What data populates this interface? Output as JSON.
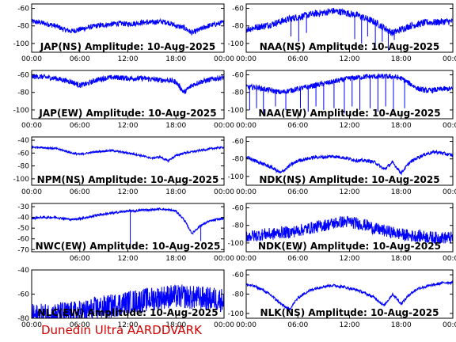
{
  "credit": "Dunedin Ultra AARDDVARK",
  "colors": {
    "trace": "#0000ff",
    "axis": "#000000",
    "credit": "#d00000"
  },
  "chart_data": [
    {
      "type": "line",
      "title": "JAP(NS) Amplitude: 10-Aug-2025",
      "xticks": [
        "00:00",
        "06:00",
        "12:00",
        "18:00",
        "00:00"
      ],
      "yticks": [
        -60,
        -80,
        -100
      ],
      "ylim": [
        -110,
        -55
      ],
      "noise": 3,
      "series": [
        {
          "x": [
            0,
            1,
            2,
            3,
            4,
            5,
            6,
            7,
            8,
            9,
            10,
            11,
            12,
            13,
            14,
            15,
            16,
            17,
            18,
            19,
            20,
            21,
            22,
            23,
            24
          ],
          "y": [
            -75,
            -76,
            -78,
            -80,
            -84,
            -86,
            -84,
            -82,
            -80,
            -79,
            -78,
            -77,
            -78,
            -77,
            -76,
            -76,
            -75,
            -76,
            -80,
            -82,
            -88,
            -84,
            -80,
            -78,
            -76
          ]
        }
      ]
    },
    {
      "type": "line",
      "title": "NAA(NS) Amplitude: 10-Aug-2025",
      "xticks": [
        "00:00",
        "06:00",
        "12:00",
        "18:00",
        "00:00"
      ],
      "yticks": [
        -60,
        -80,
        -100
      ],
      "ylim": [
        -110,
        -55
      ],
      "noise": 4,
      "series": [
        {
          "x": [
            0,
            1,
            2,
            3,
            4,
            5,
            6,
            7,
            8,
            9,
            10,
            11,
            12,
            13,
            14,
            15,
            16,
            17,
            18,
            19,
            20,
            21,
            22,
            23,
            24
          ],
          "y": [
            -84,
            -82,
            -80,
            -78,
            -75,
            -72,
            -70,
            -68,
            -66,
            -65,
            -63,
            -64,
            -66,
            -68,
            -72,
            -76,
            -82,
            -88,
            -84,
            -80,
            -78,
            -76,
            -76,
            -75,
            -75
          ]
        }
      ],
      "spikes": [
        [
          5.2,
          -92
        ],
        [
          6.1,
          -98
        ],
        [
          7.0,
          -88
        ],
        [
          12.6,
          -95
        ],
        [
          13.4,
          -100
        ],
        [
          14.1,
          -92
        ],
        [
          15.0,
          -105
        ],
        [
          15.8,
          -98
        ],
        [
          16.5,
          -108
        ],
        [
          17.2,
          -96
        ]
      ]
    },
    {
      "type": "line",
      "title": "JAP(EW) Amplitude: 10-Aug-2025",
      "xticks": [
        "00:00",
        "06:00",
        "12:00",
        "18:00",
        "00:00"
      ],
      "yticks": [
        -60,
        -80,
        -100
      ],
      "ylim": [
        -110,
        -55
      ],
      "noise": 3,
      "series": [
        {
          "x": [
            0,
            1,
            2,
            3,
            4,
            5,
            6,
            7,
            8,
            9,
            10,
            11,
            12,
            13,
            14,
            15,
            16,
            17,
            18,
            19,
            20,
            21,
            22,
            23,
            24
          ],
          "y": [
            -62,
            -62,
            -63,
            -64,
            -66,
            -68,
            -72,
            -70,
            -66,
            -64,
            -63,
            -63,
            -64,
            -64,
            -64,
            -65,
            -66,
            -66,
            -68,
            -80,
            -72,
            -68,
            -66,
            -64,
            -63
          ]
        }
      ]
    },
    {
      "type": "line",
      "title": "NAA(EW) Amplitude: 10-Aug-2025",
      "xticks": [
        "00:00",
        "06:00",
        "12:00",
        "18:00",
        "00:00"
      ],
      "yticks": [
        -60,
        -80,
        -100
      ],
      "ylim": [
        -110,
        -55
      ],
      "noise": 3,
      "series": [
        {
          "x": [
            0,
            1,
            2,
            3,
            4,
            5,
            6,
            7,
            8,
            9,
            10,
            11,
            12,
            13,
            14,
            15,
            16,
            17,
            18,
            19,
            20,
            21,
            22,
            23,
            24
          ],
          "y": [
            -74,
            -74,
            -76,
            -78,
            -80,
            -78,
            -76,
            -74,
            -72,
            -70,
            -68,
            -66,
            -64,
            -63,
            -62,
            -62,
            -62,
            -62,
            -64,
            -70,
            -76,
            -78,
            -77,
            -76,
            -76
          ]
        }
      ],
      "spikes": [
        [
          0.4,
          -100
        ],
        [
          1.2,
          -98
        ],
        [
          2.0,
          -104
        ],
        [
          3.4,
          -96
        ],
        [
          4.6,
          -100
        ],
        [
          6.3,
          -98
        ],
        [
          7.2,
          -102
        ],
        [
          8.1,
          -96
        ],
        [
          9.0,
          -100
        ],
        [
          10.2,
          -98
        ],
        [
          11.4,
          -104
        ],
        [
          12.3,
          -96
        ],
        [
          13.2,
          -100
        ],
        [
          14.4,
          -98
        ],
        [
          15.3,
          -102
        ],
        [
          16.2,
          -96
        ],
        [
          17.1,
          -100
        ],
        [
          18.4,
          -98
        ]
      ]
    },
    {
      "type": "line",
      "title": "NPM(NS) Amplitude: 10-Aug-2025",
      "xticks": [
        "00:00",
        "06:00",
        "12:00",
        "18:00",
        "00:00"
      ],
      "yticks": [
        -40,
        -60,
        -80,
        -100
      ],
      "ylim": [
        -110,
        -35
      ],
      "noise": 1.5,
      "series": [
        {
          "x": [
            0,
            1,
            2,
            3,
            4,
            5,
            6,
            7,
            8,
            9,
            10,
            11,
            12,
            13,
            14,
            15,
            16,
            17,
            18,
            19,
            20,
            21,
            22,
            23,
            24
          ],
          "y": [
            -51,
            -51,
            -52,
            -53,
            -56,
            -60,
            -62,
            -60,
            -58,
            -57,
            -56,
            -58,
            -60,
            -62,
            -65,
            -68,
            -66,
            -72,
            -64,
            -60,
            -58,
            -56,
            -54,
            -52,
            -51
          ]
        }
      ]
    },
    {
      "type": "line",
      "title": "NDK(NS) Amplitude: 10-Aug-2025",
      "xticks": [
        "00:00",
        "06:00",
        "12:00",
        "18:00",
        "00:00"
      ],
      "yticks": [
        -60,
        -80,
        -100
      ],
      "ylim": [
        -110,
        -55
      ],
      "noise": 2,
      "series": [
        {
          "x": [
            0,
            1,
            2,
            3,
            4,
            5,
            6,
            7,
            8,
            9,
            10,
            11,
            12,
            13,
            14,
            15,
            16,
            17,
            18,
            19,
            20,
            21,
            22,
            23,
            24
          ],
          "y": [
            -78,
            -82,
            -86,
            -90,
            -96,
            -88,
            -82,
            -80,
            -78,
            -78,
            -77,
            -78,
            -80,
            -82,
            -82,
            -84,
            -92,
            -84,
            -96,
            -84,
            -78,
            -74,
            -72,
            -74,
            -76
          ]
        }
      ]
    },
    {
      "type": "line",
      "title": "NWC(EW) Amplitude: 10-Aug-2025",
      "xticks": [
        "06:00",
        "12:00",
        "18:00",
        "00:00"
      ],
      "yticks": [
        -30,
        -40,
        -50,
        -60,
        -70
      ],
      "ylim": [
        -72,
        -27
      ],
      "noise": 1,
      "series": [
        {
          "x": [
            0,
            1,
            2,
            3,
            4,
            5,
            6,
            7,
            8,
            9,
            10,
            11,
            12,
            13,
            14,
            15,
            16,
            17,
            18,
            19,
            20,
            21,
            22,
            23,
            24
          ],
          "y": [
            -41,
            -40,
            -40,
            -40,
            -41,
            -42,
            -41,
            -40,
            -38,
            -37,
            -36,
            -35,
            -34,
            -34,
            -33,
            -33,
            -32,
            -33,
            -34,
            -42,
            -55,
            -48,
            -44,
            -42,
            -41
          ]
        }
      ],
      "spikes": [
        [
          12.3,
          -68
        ],
        [
          21.1,
          -62
        ]
      ]
    },
    {
      "type": "line",
      "title": "NDK(EW) Amplitude: 10-Aug-2025",
      "xticks": [
        "00:00",
        "06:00",
        "12:00",
        "18:00",
        "00:00"
      ],
      "yticks": [
        -60,
        -80,
        -100
      ],
      "ylim": [
        -110,
        -55
      ],
      "noise": 7,
      "series": [
        {
          "x": [
            0,
            1,
            2,
            3,
            4,
            5,
            6,
            7,
            8,
            9,
            10,
            11,
            12,
            13,
            14,
            15,
            16,
            17,
            18,
            19,
            20,
            21,
            22,
            23,
            24
          ],
          "y": [
            -92,
            -92,
            -90,
            -90,
            -88,
            -88,
            -86,
            -84,
            -82,
            -80,
            -78,
            -76,
            -76,
            -78,
            -80,
            -84,
            -86,
            -88,
            -90,
            -92,
            -92,
            -93,
            -94,
            -94,
            -94
          ]
        }
      ]
    },
    {
      "type": "line",
      "title": "NLC(EW) Amplitude: 10-Aug-2025",
      "xticks": [
        "00:00",
        "06:00",
        "12:00",
        "18:00",
        "00:00"
      ],
      "yticks": [
        -40,
        -60,
        -80
      ],
      "ylim": [
        -80,
        -40
      ],
      "noise": 10,
      "series": [
        {
          "x": [
            0,
            1,
            2,
            3,
            4,
            5,
            6,
            7,
            8,
            9,
            10,
            11,
            12,
            13,
            14,
            15,
            16,
            17,
            18,
            19,
            20,
            21,
            22,
            23,
            24
          ],
          "y": [
            -78,
            -78,
            -77,
            -77,
            -76,
            -76,
            -75,
            -74,
            -72,
            -71,
            -70,
            -68,
            -67,
            -66,
            -65,
            -64,
            -63,
            -62,
            -62,
            -62,
            -63,
            -63,
            -64,
            -64,
            -65
          ]
        }
      ]
    },
    {
      "type": "line",
      "title": "NLK(NS) Amplitude: 10-Aug-2025",
      "xticks": [
        "00:00",
        "06:00",
        "12:00",
        "18:00",
        "00:00"
      ],
      "yticks": [
        -60,
        -80,
        -100
      ],
      "ylim": [
        -105,
        -55
      ],
      "noise": 1.5,
      "series": [
        {
          "x": [
            0,
            1,
            2,
            3,
            4,
            5,
            6,
            7,
            8,
            9,
            10,
            11,
            12,
            13,
            14,
            15,
            16,
            17,
            18,
            19,
            20,
            21,
            22,
            23,
            24
          ],
          "y": [
            -70,
            -72,
            -76,
            -82,
            -90,
            -96,
            -84,
            -78,
            -74,
            -72,
            -71,
            -72,
            -74,
            -76,
            -80,
            -84,
            -92,
            -80,
            -90,
            -80,
            -74,
            -72,
            -70,
            -68,
            -68
          ]
        }
      ]
    }
  ]
}
